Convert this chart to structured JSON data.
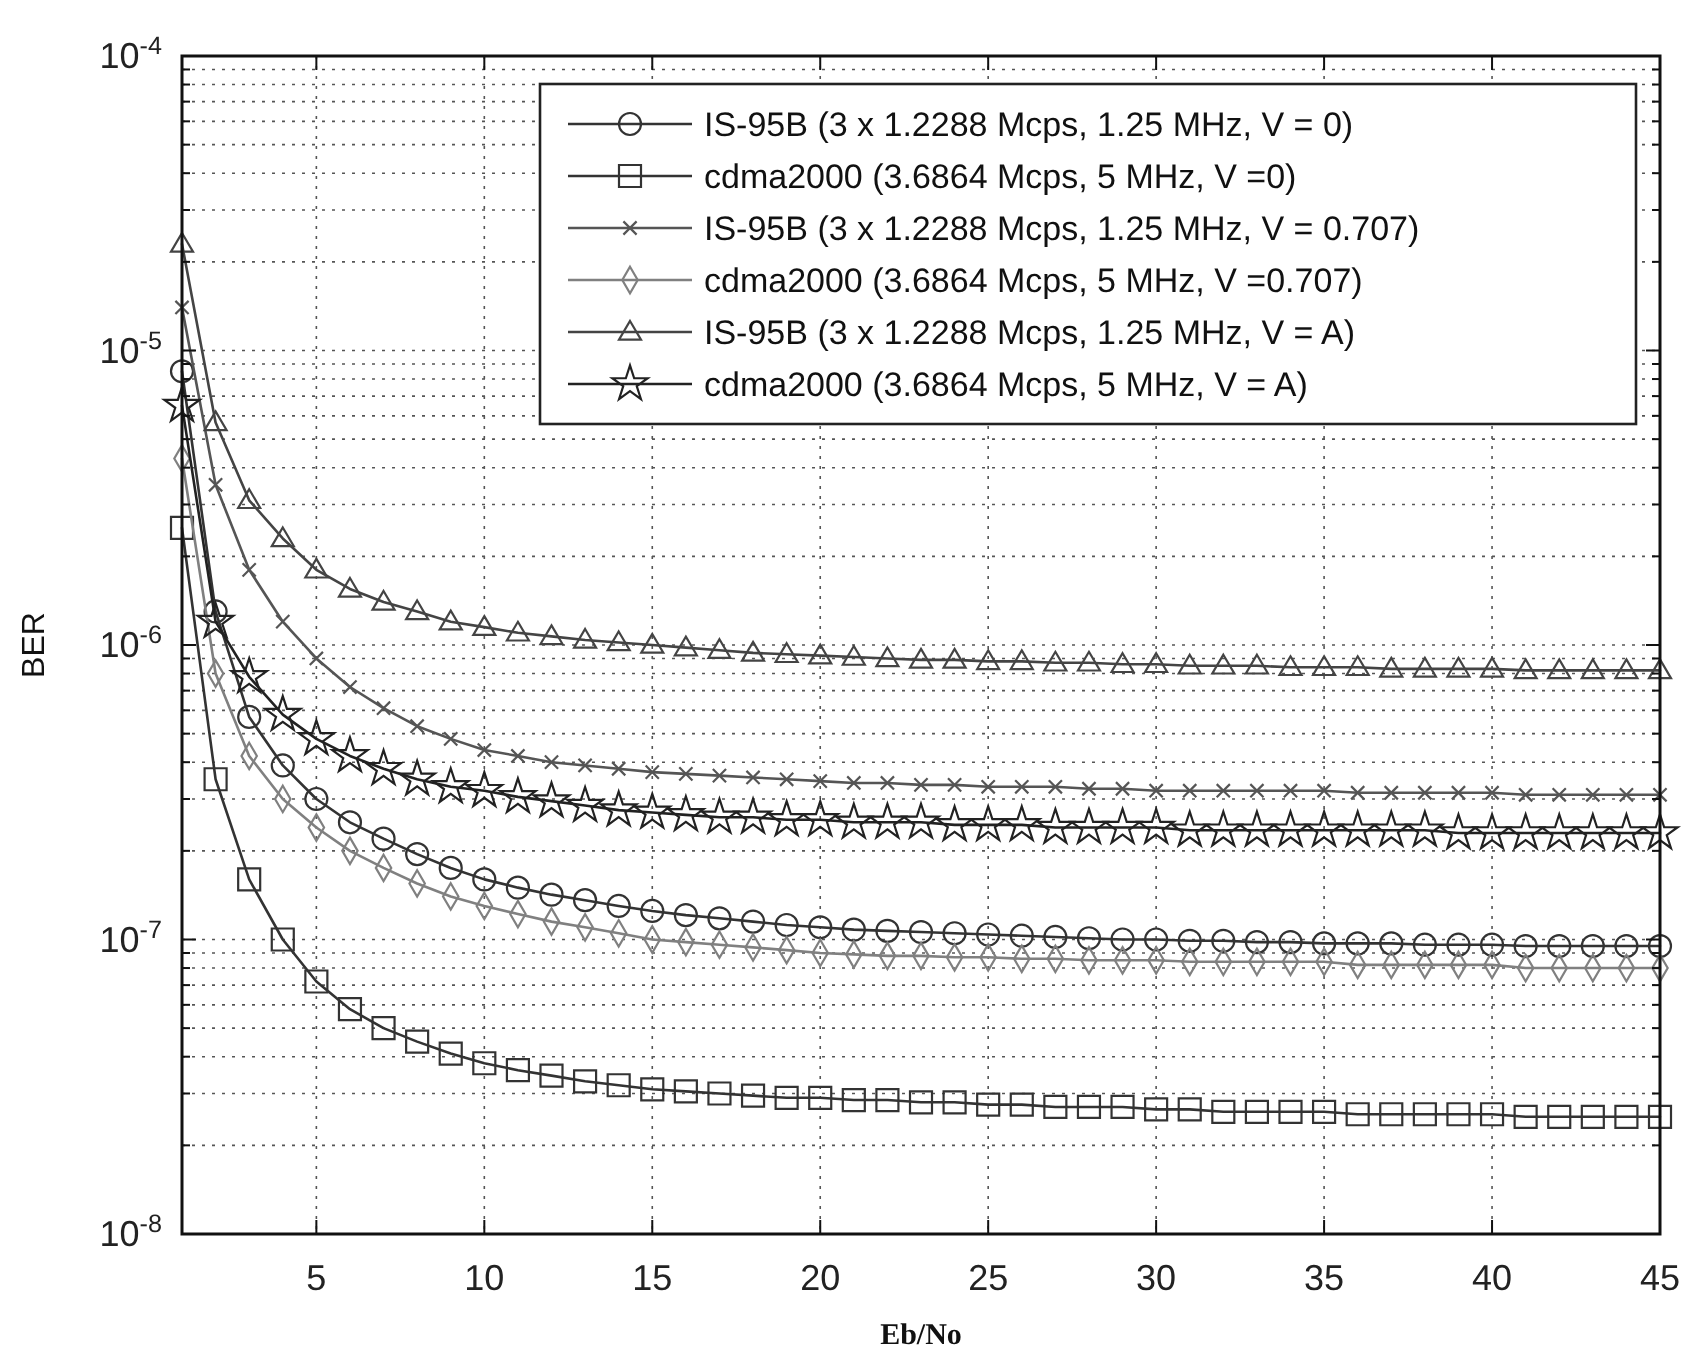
{
  "chart_data": {
    "type": "line",
    "xlabel": "Eb/No",
    "ylabel": "BER",
    "log": "y",
    "grid": true,
    "legend": "top right",
    "xlim": [
      1,
      45
    ],
    "ylim": [
      1e-08,
      0.0001
    ],
    "xticks": [
      5,
      10,
      15,
      20,
      25,
      30,
      35,
      40,
      45
    ],
    "yticks": [
      {
        "value": 1e-08,
        "label": "10$^{-8}$"
      },
      {
        "value": 2e-08,
        "label": null
      },
      {
        "value": 3e-08,
        "label": null
      },
      {
        "value": 4e-08,
        "label": null
      },
      {
        "value": 5e-08,
        "label": null
      },
      {
        "value": 6e-08,
        "label": null
      },
      {
        "value": 7e-08,
        "label": null
      },
      {
        "value": 8e-08,
        "label": null
      },
      {
        "value": 9e-08,
        "label": null
      },
      {
        "value": 1e-07,
        "label": "10$^{-7}$"
      },
      {
        "value": 2e-07,
        "label": null
      },
      {
        "value": 3e-07,
        "label": null
      },
      {
        "value": 4e-07,
        "label": null
      },
      {
        "value": 5e-07,
        "label": null
      },
      {
        "value": 6e-07,
        "label": null
      },
      {
        "value": 7e-07,
        "label": null
      },
      {
        "value": 8e-07,
        "label": null
      },
      {
        "value": 9e-07,
        "label": null
      },
      {
        "value": 1e-06,
        "label": "10$^{-6}$"
      },
      {
        "value": 2e-06,
        "label": null
      },
      {
        "value": 3e-06,
        "label": null
      },
      {
        "value": 4e-06,
        "label": null
      },
      {
        "value": 5e-06,
        "label": null
      },
      {
        "value": 6e-06,
        "label": null
      },
      {
        "value": 7e-06,
        "label": null
      },
      {
        "value": 8e-06,
        "label": null
      },
      {
        "value": 9e-06,
        "label": null
      },
      {
        "value": 1e-05,
        "label": "10$^{-5}$"
      },
      {
        "value": 2e-05,
        "label": null
      },
      {
        "value": 3e-05,
        "label": null
      },
      {
        "value": 4e-05,
        "label": null
      },
      {
        "value": 5e-05,
        "label": null
      },
      {
        "value": 6e-05,
        "label": null
      },
      {
        "value": 7e-05,
        "label": null
      },
      {
        "value": 8e-05,
        "label": null
      },
      {
        "value": 9e-05,
        "label": null
      },
      {
        "value": 0.0001,
        "label": "10$^{-4}$"
      }
    ],
    "x": [
      1,
      2,
      3,
      4,
      5,
      6,
      7,
      8,
      9,
      10,
      11,
      12,
      13,
      14,
      15,
      16,
      17,
      18,
      19,
      20,
      21,
      22,
      23,
      24,
      25,
      26,
      27,
      28,
      29,
      30,
      31,
      32,
      33,
      34,
      35,
      36,
      37,
      38,
      39,
      40,
      41,
      42,
      43,
      44,
      45
    ],
    "series": [
      {
        "name": "IS-95B (3 x 1.2288 Mcps, 1.25 MHz, V = 0)",
        "color": "#333333",
        "marker": "circle",
        "values": [
          8.5e-06,
          1.3e-06,
          5.7e-07,
          3.9e-07,
          3e-07,
          2.5e-07,
          2.2e-07,
          1.95e-07,
          1.75e-07,
          1.6e-07,
          1.5e-07,
          1.42e-07,
          1.36e-07,
          1.3e-07,
          1.25e-07,
          1.21e-07,
          1.18e-07,
          1.15e-07,
          1.12e-07,
          1.1e-07,
          1.08e-07,
          1.07e-07,
          1.06e-07,
          1.05e-07,
          1.04e-07,
          1.03e-07,
          1.02e-07,
          1.01e-07,
          1e-07,
          1e-07,
          9.9e-08,
          9.9e-08,
          9.8e-08,
          9.8e-08,
          9.7e-08,
          9.7e-08,
          9.7e-08,
          9.6e-08,
          9.6e-08,
          9.6e-08,
          9.5e-08,
          9.5e-08,
          9.5e-08,
          9.5e-08,
          9.5e-08
        ]
      },
      {
        "name": "cdma2000 (3.6864 Mcps, 5 MHz, V =0)",
        "color": "#333333",
        "marker": "square",
        "values": [
          2.5e-06,
          3.5e-07,
          1.6e-07,
          1e-07,
          7.2e-08,
          5.8e-08,
          5e-08,
          4.5e-08,
          4.1e-08,
          3.8e-08,
          3.6e-08,
          3.45e-08,
          3.3e-08,
          3.2e-08,
          3.1e-08,
          3.05e-08,
          3e-08,
          2.95e-08,
          2.9e-08,
          2.9e-08,
          2.85e-08,
          2.85e-08,
          2.8e-08,
          2.8e-08,
          2.75e-08,
          2.75e-08,
          2.7e-08,
          2.7e-08,
          2.7e-08,
          2.65e-08,
          2.65e-08,
          2.6e-08,
          2.6e-08,
          2.6e-08,
          2.6e-08,
          2.55e-08,
          2.55e-08,
          2.55e-08,
          2.55e-08,
          2.55e-08,
          2.5e-08,
          2.5e-08,
          2.5e-08,
          2.5e-08,
          2.5e-08
        ]
      },
      {
        "name": "IS-95B (3 x 1.2288 Mcps, 1.25 MHz, V = 0.707)",
        "color": "#555555",
        "marker": "cross",
        "values": [
          1.4e-05,
          3.5e-06,
          1.8e-06,
          1.2e-06,
          9e-07,
          7.2e-07,
          6.1e-07,
          5.3e-07,
          4.8e-07,
          4.4e-07,
          4.2e-07,
          4e-07,
          3.9e-07,
          3.8e-07,
          3.7e-07,
          3.65e-07,
          3.6e-07,
          3.55e-07,
          3.5e-07,
          3.45e-07,
          3.4e-07,
          3.4e-07,
          3.35e-07,
          3.35e-07,
          3.3e-07,
          3.3e-07,
          3.3e-07,
          3.25e-07,
          3.25e-07,
          3.2e-07,
          3.2e-07,
          3.2e-07,
          3.2e-07,
          3.2e-07,
          3.2e-07,
          3.15e-07,
          3.15e-07,
          3.15e-07,
          3.15e-07,
          3.15e-07,
          3.1e-07,
          3.1e-07,
          3.1e-07,
          3.1e-07,
          3.1e-07
        ]
      },
      {
        "name": "cdma2000 (3.6864 Mcps, 5 MHz, V =0.707)",
        "color": "#808080",
        "marker": "diamond",
        "values": [
          4.3e-06,
          8e-07,
          4.2e-07,
          3e-07,
          2.4e-07,
          2e-07,
          1.75e-07,
          1.55e-07,
          1.4e-07,
          1.3e-07,
          1.22e-07,
          1.15e-07,
          1.1e-07,
          1.05e-07,
          1e-07,
          9.8e-08,
          9.6e-08,
          9.4e-08,
          9.2e-08,
          9e-08,
          8.9e-08,
          8.8e-08,
          8.8e-08,
          8.7e-08,
          8.7e-08,
          8.6e-08,
          8.6e-08,
          8.5e-08,
          8.5e-08,
          8.5e-08,
          8.4e-08,
          8.4e-08,
          8.4e-08,
          8.4e-08,
          8.4e-08,
          8.2e-08,
          8.2e-08,
          8.2e-08,
          8.2e-08,
          8.2e-08,
          8e-08,
          8e-08,
          8e-08,
          8e-08,
          8e-08
        ]
      },
      {
        "name": "IS-95B (3 x 1.2288 Mcps, 1.25 MHz, V = A)",
        "color": "#444444",
        "marker": "triangle",
        "values": [
          2.3e-05,
          5.7e-06,
          3.1e-06,
          2.3e-06,
          1.8e-06,
          1.55e-06,
          1.4e-06,
          1.3e-06,
          1.2e-06,
          1.15e-06,
          1.1e-06,
          1.07e-06,
          1.04e-06,
          1.02e-06,
          1e-06,
          9.8e-07,
          9.6e-07,
          9.4e-07,
          9.3e-07,
          9.2e-07,
          9.1e-07,
          9e-07,
          8.9e-07,
          8.9e-07,
          8.8e-07,
          8.8e-07,
          8.7e-07,
          8.7e-07,
          8.6e-07,
          8.6e-07,
          8.5e-07,
          8.5e-07,
          8.5e-07,
          8.4e-07,
          8.4e-07,
          8.4e-07,
          8.3e-07,
          8.3e-07,
          8.3e-07,
          8.3e-07,
          8.2e-07,
          8.2e-07,
          8.2e-07,
          8.2e-07,
          8.2e-07
        ]
      },
      {
        "name": "cdma2000 (3.6864 Mcps, 5 MHz, V = A)",
        "color": "#222222",
        "marker": "star",
        "values": [
          6.5e-06,
          1.2e-06,
          7.8e-07,
          5.8e-07,
          4.8e-07,
          4.2e-07,
          3.8e-07,
          3.5e-07,
          3.3e-07,
          3.2e-07,
          3.05e-07,
          2.95e-07,
          2.85e-07,
          2.75e-07,
          2.7e-07,
          2.65e-07,
          2.6e-07,
          2.6e-07,
          2.55e-07,
          2.55e-07,
          2.5e-07,
          2.5e-07,
          2.5e-07,
          2.45e-07,
          2.45e-07,
          2.45e-07,
          2.4e-07,
          2.4e-07,
          2.4e-07,
          2.4e-07,
          2.35e-07,
          2.35e-07,
          2.35e-07,
          2.35e-07,
          2.35e-07,
          2.35e-07,
          2.35e-07,
          2.35e-07,
          2.3e-07,
          2.3e-07,
          2.3e-07,
          2.3e-07,
          2.3e-07,
          2.3e-07,
          2.3e-07
        ]
      }
    ]
  }
}
